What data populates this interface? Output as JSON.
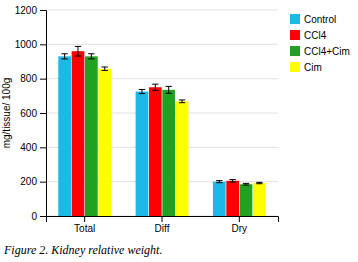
{
  "chart_data": {
    "type": "bar",
    "title": "Figure 2. Kidney relative weight.",
    "categories": [
      "Total",
      "Diff",
      "Dry"
    ],
    "series": [
      {
        "name": "Control",
        "color": "#1CB8E8",
        "values": [
          930,
          725,
          200
        ],
        "errors": [
          15,
          12,
          6
        ]
      },
      {
        "name": "CCl4",
        "color": "#FF0000",
        "values": [
          960,
          750,
          205
        ],
        "errors": [
          28,
          18,
          7
        ]
      },
      {
        "name": "CCl4+Cim",
        "color": "#22A022",
        "values": [
          930,
          735,
          185
        ],
        "errors": [
          15,
          20,
          5
        ]
      },
      {
        "name": "Cim",
        "color": "#FFFF00",
        "values": [
          858,
          668,
          192
        ],
        "errors": [
          10,
          8,
          4
        ]
      }
    ],
    "ylabel": "mg/tissue/ 100g",
    "ylim": [
      0,
      1200
    ],
    "yticks": [
      0,
      200,
      400,
      600,
      800,
      1000,
      1200
    ],
    "grid": true,
    "legend": "right"
  }
}
